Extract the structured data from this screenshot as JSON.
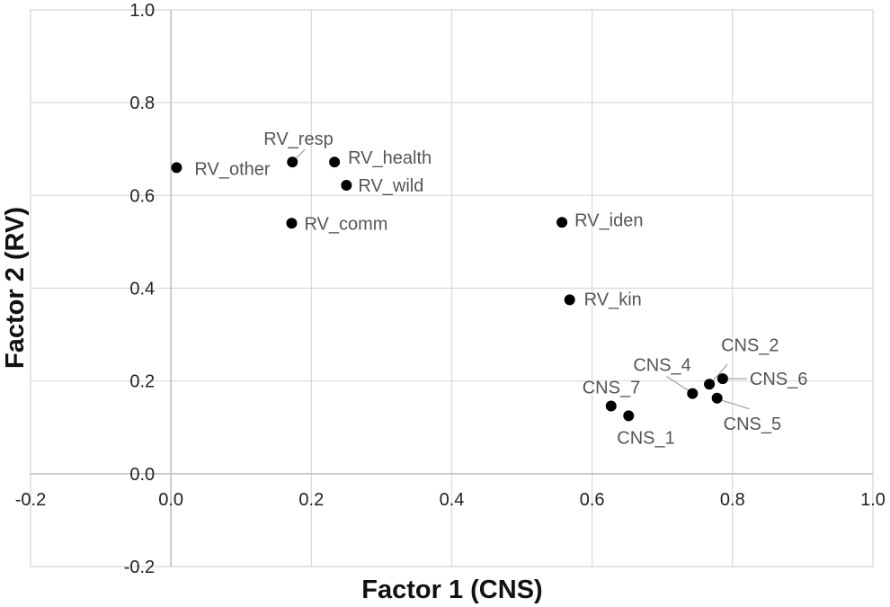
{
  "chart_data": {
    "type": "scatter",
    "title": "",
    "xlabel": "Factor 1 (CNS)",
    "ylabel": "Factor 2 (RV)",
    "xlim": [
      -0.2,
      1.0
    ],
    "ylim": [
      -0.2,
      1.0
    ],
    "x_ticks": [
      "-0.2",
      "0.0",
      "0.2",
      "0.4",
      "0.6",
      "0.8",
      "1.0"
    ],
    "y_ticks": [
      "-0.2",
      "0.0",
      "0.2",
      "0.4",
      "0.6",
      "0.8",
      "1.0"
    ],
    "grid": true,
    "points": [
      {
        "label": "RV_other",
        "x": 0.008,
        "y": 0.66
      },
      {
        "label": "RV_resp",
        "x": 0.173,
        "y": 0.672
      },
      {
        "label": "RV_health",
        "x": 0.233,
        "y": 0.672
      },
      {
        "label": "RV_wild",
        "x": 0.25,
        "y": 0.622
      },
      {
        "label": "RV_comm",
        "x": 0.172,
        "y": 0.54
      },
      {
        "label": "RV_iden",
        "x": 0.557,
        "y": 0.542
      },
      {
        "label": "RV_kin",
        "x": 0.568,
        "y": 0.375
      },
      {
        "label": "CNS_7",
        "x": 0.627,
        "y": 0.146
      },
      {
        "label": "CNS_1",
        "x": 0.652,
        "y": 0.125
      },
      {
        "label": "CNS_4",
        "x": 0.743,
        "y": 0.173
      },
      {
        "label": "CNS_2",
        "x": 0.767,
        "y": 0.193
      },
      {
        "label": "CNS_6",
        "x": 0.786,
        "y": 0.205
      },
      {
        "label": "CNS_5",
        "x": 0.778,
        "y": 0.163
      }
    ]
  }
}
